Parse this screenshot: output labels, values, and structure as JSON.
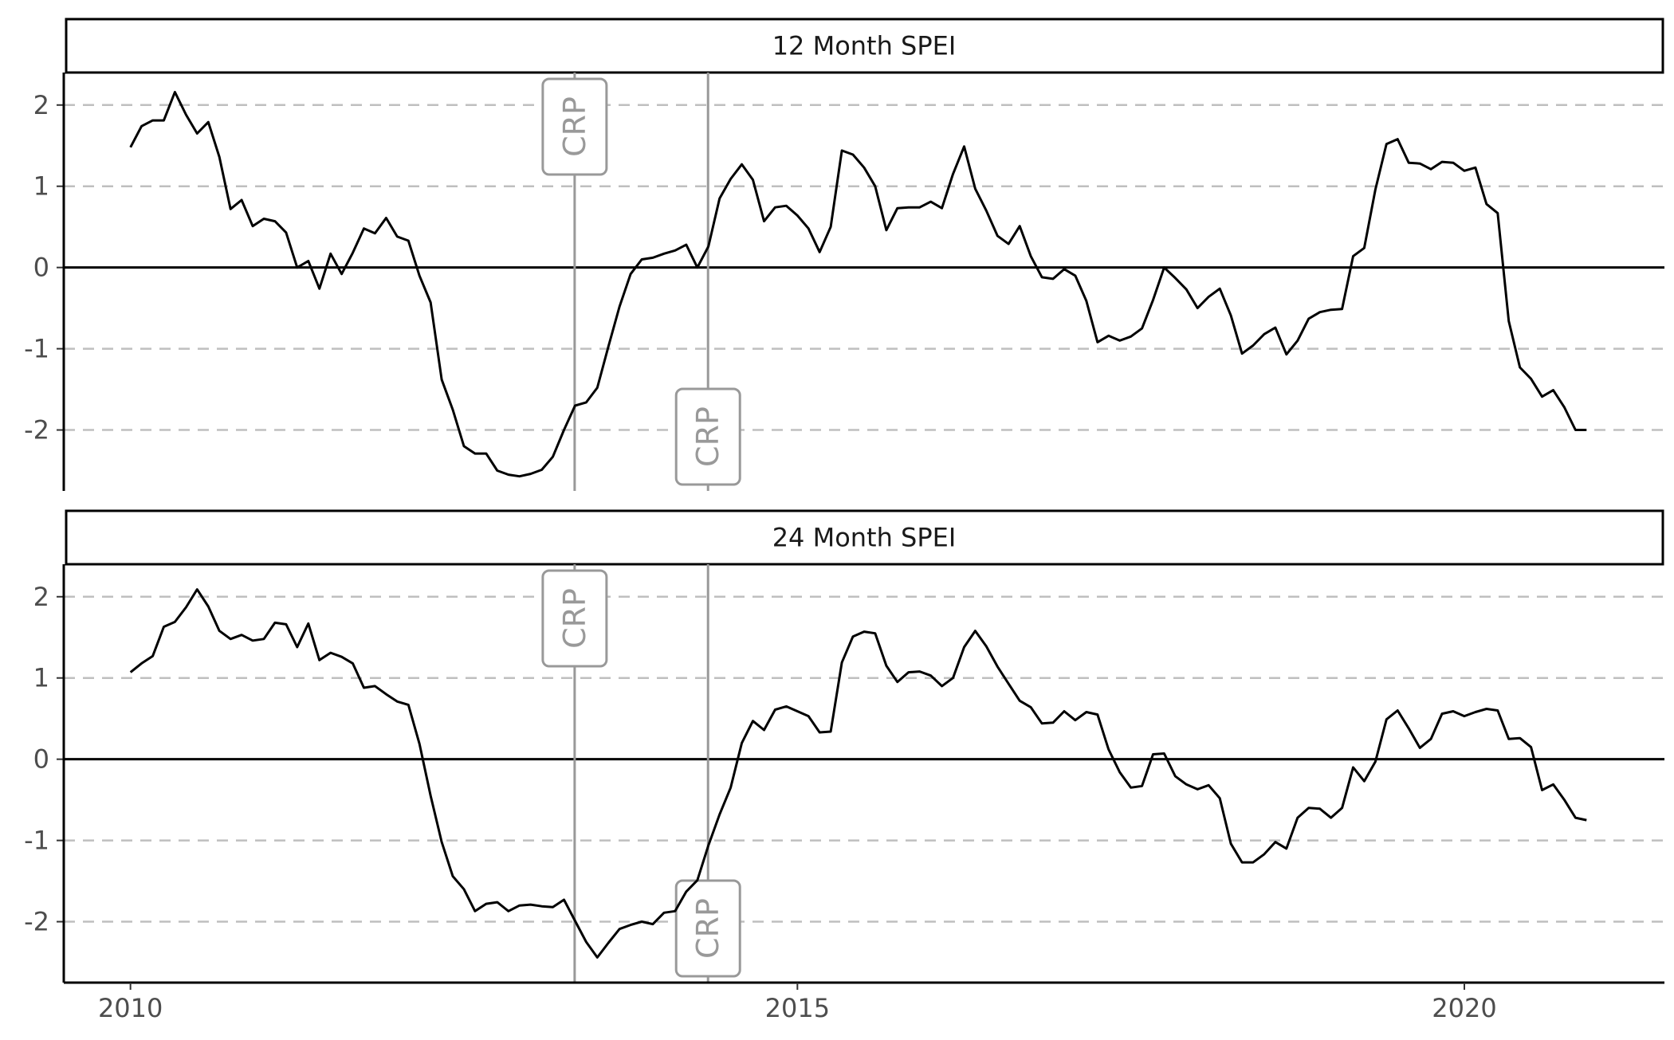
{
  "chart_data": {
    "type": "line",
    "colors": {
      "line": "#000000",
      "zero_line": "#000000",
      "grid_dashed": "#bfbfbf",
      "vline": "#999999",
      "crp_label": "#999999",
      "axis_text": "#4d4d4d"
    },
    "xlim": [
      2009.5,
      2021.5
    ],
    "ylim": [
      -2.75,
      2.4
    ],
    "x_ticks": [
      {
        "value": 2010,
        "label": "2010"
      },
      {
        "value": 2015,
        "label": "2015"
      },
      {
        "value": 2020,
        "label": "2020"
      }
    ],
    "y_ticks": [
      {
        "value": 2,
        "label": "2"
      },
      {
        "value": 1,
        "label": "1"
      },
      {
        "value": 0,
        "label": "0"
      },
      {
        "value": -1,
        "label": "-1"
      },
      {
        "value": -2,
        "label": "-2"
      }
    ],
    "grid": "dashed horizontal at 2, 1, -1, -2; solid zero line",
    "vlines": [
      {
        "x": 2013.33,
        "label": "CRP",
        "label_position": "top"
      },
      {
        "x": 2014.33,
        "label": "CRP",
        "label_position": "bottom"
      }
    ],
    "x_start": 2010.0,
    "x_step": 0.08333,
    "panels": [
      {
        "title": "12 Month SPEI",
        "values": [
          1.48,
          1.74,
          1.81,
          1.81,
          2.16,
          1.88,
          1.65,
          1.79,
          1.36,
          0.72,
          0.83,
          0.51,
          0.6,
          0.57,
          0.43,
          0.0,
          0.08,
          -0.26,
          0.17,
          -0.08,
          0.18,
          0.48,
          0.42,
          0.61,
          0.38,
          0.33,
          -0.1,
          -0.43,
          -1.38,
          -1.75,
          -2.2,
          -2.29,
          -2.29,
          -2.5,
          -2.55,
          -2.57,
          -2.54,
          -2.49,
          -2.33,
          -2.0,
          -1.7,
          -1.66,
          -1.48,
          -0.97,
          -0.48,
          -0.08,
          0.1,
          0.12,
          0.17,
          0.21,
          0.28,
          0.0,
          0.26,
          0.85,
          1.09,
          1.27,
          1.08,
          0.57,
          0.74,
          0.76,
          0.64,
          0.48,
          0.19,
          0.5,
          1.44,
          1.39,
          1.23,
          1.0,
          0.46,
          0.73,
          0.74,
          0.74,
          0.81,
          0.73,
          1.15,
          1.49,
          0.97,
          0.7,
          0.39,
          0.29,
          0.51,
          0.14,
          -0.12,
          -0.14,
          -0.02,
          -0.1,
          -0.41,
          -0.92,
          -0.84,
          -0.9,
          -0.85,
          -0.75,
          -0.4,
          0.0,
          -0.13,
          -0.27,
          -0.5,
          -0.36,
          -0.26,
          -0.59,
          -1.06,
          -0.96,
          -0.82,
          -0.74,
          -1.07,
          -0.9,
          -0.63,
          -0.55,
          -0.52,
          -0.51,
          0.14,
          0.24,
          0.96,
          1.52,
          1.58,
          1.29,
          1.28,
          1.21,
          1.3,
          1.29,
          1.19,
          1.23,
          0.78,
          0.67,
          -0.66,
          -1.23,
          -1.37,
          -1.59,
          -1.51,
          -1.72,
          -2.0,
          -2.0
        ]
      },
      {
        "title": "24 Month SPEI",
        "values": [
          1.07,
          1.18,
          1.27,
          1.63,
          1.69,
          1.87,
          2.09,
          1.88,
          1.58,
          1.48,
          1.53,
          1.46,
          1.48,
          1.68,
          1.66,
          1.38,
          1.67,
          1.22,
          1.31,
          1.26,
          1.18,
          0.88,
          0.9,
          0.8,
          0.71,
          0.67,
          0.19,
          -0.45,
          -1.02,
          -1.44,
          -1.6,
          -1.87,
          -1.78,
          -1.76,
          -1.87,
          -1.8,
          -1.79,
          -1.81,
          -1.82,
          -1.73,
          -1.99,
          -2.25,
          -2.44,
          -2.26,
          -2.09,
          -2.04,
          -2.0,
          -2.03,
          -1.89,
          -1.87,
          -1.63,
          -1.49,
          -1.06,
          -0.68,
          -0.35,
          0.2,
          0.47,
          0.36,
          0.61,
          0.65,
          0.59,
          0.53,
          0.33,
          0.34,
          1.19,
          1.51,
          1.57,
          1.55,
          1.15,
          0.95,
          1.07,
          1.08,
          1.03,
          0.9,
          1.0,
          1.38,
          1.58,
          1.39,
          1.14,
          0.93,
          0.72,
          0.64,
          0.44,
          0.45,
          0.59,
          0.48,
          0.58,
          0.55,
          0.12,
          -0.16,
          -0.35,
          -0.33,
          0.06,
          0.07,
          -0.21,
          -0.31,
          -0.37,
          -0.32,
          -0.48,
          -1.04,
          -1.27,
          -1.27,
          -1.17,
          -1.02,
          -1.1,
          -0.72,
          -0.6,
          -0.61,
          -0.72,
          -0.6,
          -0.1,
          -0.27,
          -0.03,
          0.49,
          0.6,
          0.38,
          0.14,
          0.25,
          0.56,
          0.59,
          0.53,
          0.58,
          0.62,
          0.6,
          0.25,
          0.26,
          0.15,
          -0.38,
          -0.31,
          -0.5,
          -0.72,
          -0.75
        ]
      }
    ]
  }
}
